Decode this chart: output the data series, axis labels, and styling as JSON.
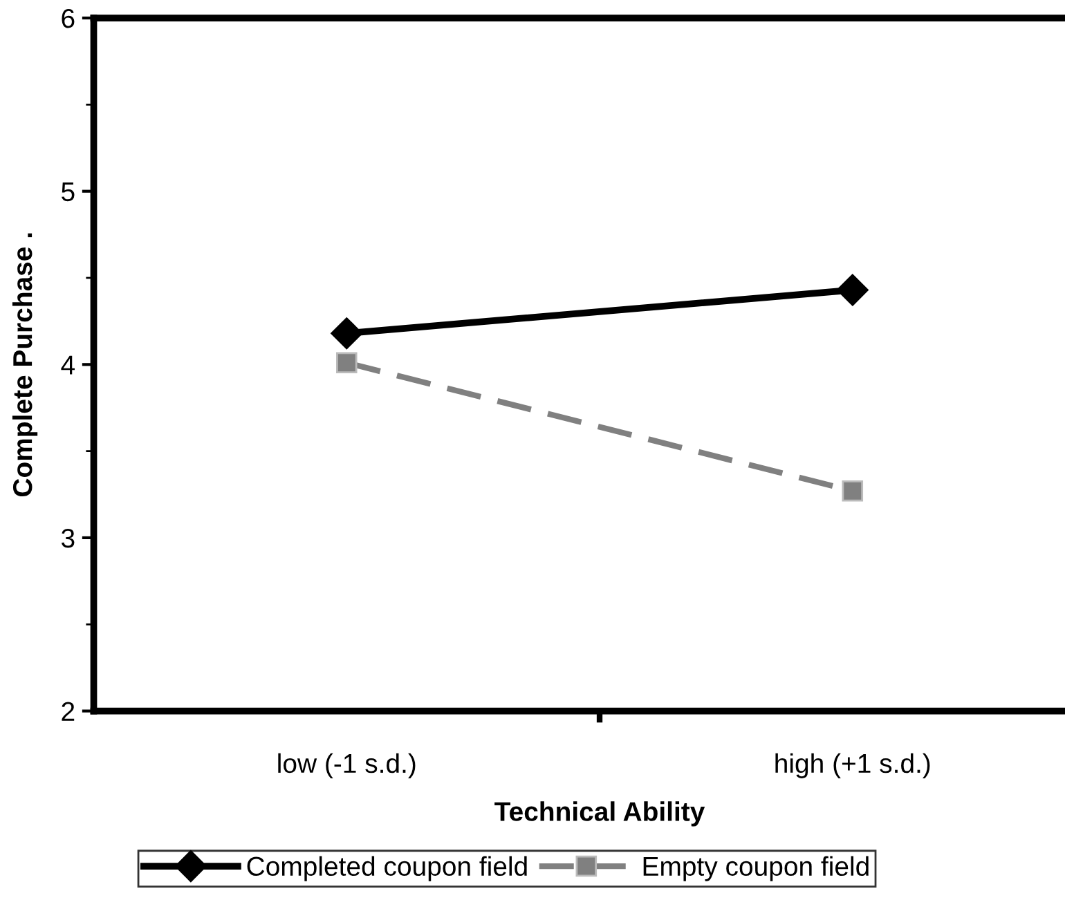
{
  "chart_data": {
    "type": "line",
    "xlabel": "Technical Ability",
    "ylabel": "Complete Purchase .",
    "categories": [
      "low (-1 s.d.)",
      "high (+1 s.d.)"
    ],
    "series": [
      {
        "name": "Completed coupon field",
        "color": "#000000",
        "values": [
          4.18,
          4.43
        ],
        "marker": "diamond",
        "line_style": "solid"
      },
      {
        "name": "Empty coupon field",
        "color": "#808080",
        "values": [
          4.01,
          3.27
        ],
        "marker": "square",
        "line_style": "dashed"
      }
    ],
    "ylim": [
      2,
      6
    ],
    "yticks": [
      2,
      3,
      4,
      5,
      6
    ],
    "grid": false,
    "legend": "bottom"
  }
}
